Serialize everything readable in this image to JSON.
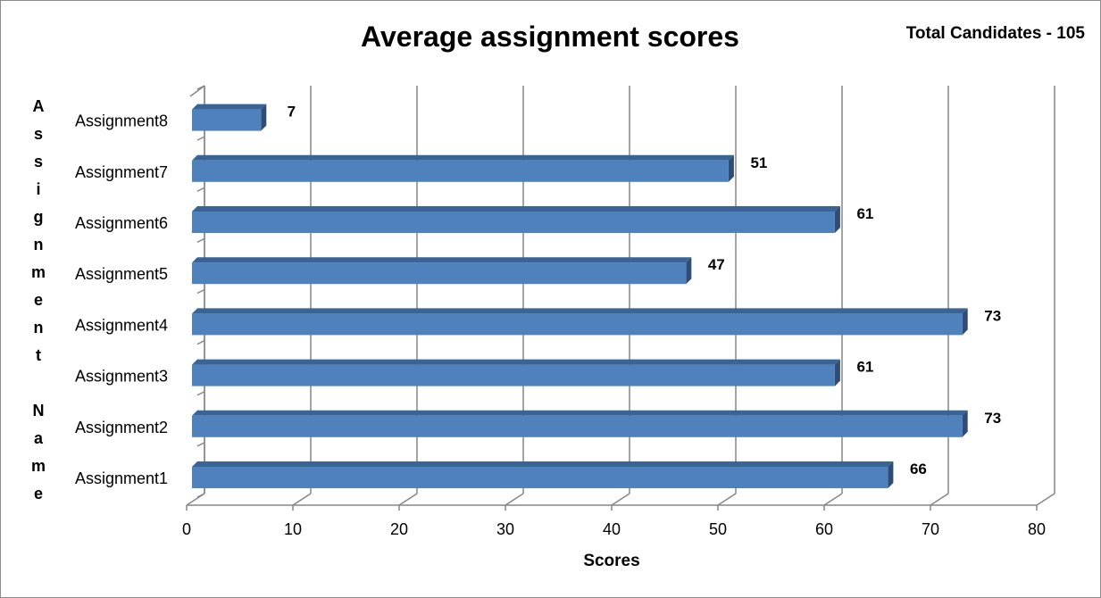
{
  "chart_data": {
    "type": "bar",
    "orientation": "horizontal",
    "title": "Average assignment scores",
    "annotation": "Total Candidates - 105",
    "xlabel": "Scores",
    "ylabel": "Assignment Name",
    "categories": [
      "Assignment1",
      "Assignment2",
      "Assignment3",
      "Assignment4",
      "Assignment5",
      "Assignment6",
      "Assignment7",
      "Assignment8"
    ],
    "values": [
      66,
      73,
      61,
      73,
      47,
      61,
      51,
      7
    ],
    "data_labels": [
      "66",
      "73",
      "61",
      "73",
      "47",
      "61",
      "51",
      "7"
    ],
    "xlim": [
      0,
      80
    ],
    "xticks": [
      "0",
      "10",
      "20",
      "30",
      "40",
      "50",
      "60",
      "70",
      "80"
    ],
    "grid": "vertical",
    "legend": "none",
    "bar_color": "#4f81bd",
    "bar_top_color": "#3a6396",
    "bar_side_color": "#2c4d77"
  }
}
